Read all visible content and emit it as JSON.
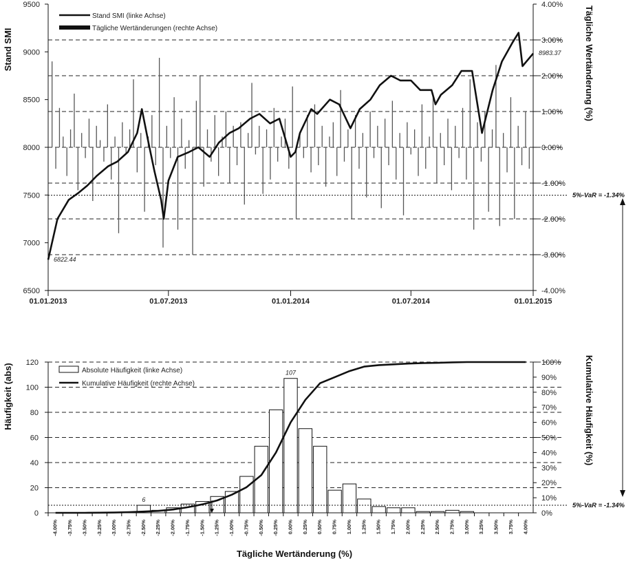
{
  "chart_data": [
    {
      "type": "line",
      "series": [
        {
          "name": "Stand SMI (linke Achse)",
          "axis": "left",
          "x": [
            "01.01.2013",
            "15.01.2013",
            "01.02.2013",
            "15.02.2013",
            "01.03.2013",
            "15.03.2013",
            "01.04.2013",
            "15.04.2013",
            "01.05.2013",
            "15.05.2013",
            "22.05.2013",
            "01.06.2013",
            "10.06.2013",
            "20.06.2013",
            "24.06.2013",
            "01.07.2013",
            "15.07.2013",
            "01.08.2013",
            "15.08.2013",
            "01.09.2013",
            "15.09.2013",
            "01.10.2013",
            "15.10.2013",
            "01.11.2013",
            "15.11.2013",
            "01.12.2013",
            "15.12.2013",
            "01.01.2014",
            "08.01.2014",
            "15.01.2014",
            "01.02.2014",
            "10.02.2014",
            "01.03.2014",
            "15.03.2014",
            "01.04.2014",
            "15.04.2014",
            "01.05.2014",
            "15.05.2014",
            "01.06.2014",
            "15.06.2014",
            "01.07.2014",
            "15.07.2014",
            "01.08.2014",
            "07.08.2014",
            "15.08.2014",
            "01.09.2014",
            "15.09.2014",
            "01.10.2014",
            "16.10.2014",
            "01.11.2014",
            "15.11.2014",
            "01.12.2014",
            "10.12.2014",
            "16.12.2014",
            "01.01.2015"
          ],
          "y": [
            6822,
            7250,
            7450,
            7520,
            7600,
            7700,
            7800,
            7850,
            7950,
            8150,
            8400,
            8050,
            7750,
            7450,
            7250,
            7650,
            7900,
            7950,
            8000,
            7900,
            8050,
            8150,
            8200,
            8300,
            8350,
            8250,
            8300,
            7900,
            7950,
            8150,
            8400,
            8350,
            8500,
            8450,
            8200,
            8400,
            8500,
            8650,
            8750,
            8700,
            8700,
            8600,
            8600,
            8450,
            8550,
            8650,
            8800,
            8800,
            8150,
            8600,
            8900,
            9100,
            9200,
            8850,
            8983
          ]
        }
      ],
      "bars": {
        "name": "Tägliche Wertänderungen (rechte Achse)",
        "axis": "right",
        "values": [
          2.4,
          -0.6,
          1.1,
          0.3,
          -0.8,
          0.5,
          1.5,
          -1.2,
          0.4,
          -0.3,
          0.8,
          -1.5,
          0.6,
          0.2,
          -0.4,
          1.2,
          -0.9,
          0.3,
          -2.4,
          0.7,
          -0.2,
          0.5,
          1.9,
          -0.7,
          0.4,
          -1.8,
          0.3,
          0.9,
          -0.5,
          2.5,
          -2.8,
          0.6,
          -0.3,
          1.4,
          -2.3,
          0.8,
          -0.6,
          0.2,
          -3.0,
          1.3,
          2.0,
          -1.1,
          0.5,
          -0.4,
          0.9,
          -0.8,
          0.3,
          1.0,
          -1.0,
          0.6,
          -0.5,
          0.7,
          -1.6,
          0.4,
          1.8,
          -0.2,
          0.6,
          -1.3,
          0.5,
          -0.9,
          1.1,
          -0.4,
          0.3,
          0.8,
          -0.6,
          1.7,
          -2.0,
          0.4,
          -0.3,
          0.9,
          -0.7,
          1.2,
          -0.5,
          0.6,
          -1.1,
          0.3,
          0.7,
          -0.8,
          1.6,
          -0.4,
          0.5,
          -2.0,
          0.9,
          -0.6,
          0.4,
          -1.4,
          1.0,
          -0.3,
          0.6,
          -1.7,
          0.8,
          -0.5,
          1.3,
          -0.9,
          0.4,
          -1.9,
          0.7,
          -0.2,
          0.5,
          -0.8,
          1.2,
          -0.6,
          0.3,
          1.5,
          -1.0,
          0.4,
          -0.5,
          0.8,
          -1.2,
          0.6,
          -0.3,
          1.1,
          -0.9,
          1.9,
          -2.3,
          0.7,
          -0.4,
          1.0,
          -1.8,
          0.5,
          2.3,
          -2.2,
          0.4,
          -0.7,
          1.4,
          -2.0,
          0.6,
          -0.5,
          1.0,
          -0.6
        ]
      },
      "xlim": [
        "01.01.2013",
        "01.01.2015"
      ],
      "x_ticks": [
        "01.01.2013",
        "01.07.2013",
        "01.01.2014",
        "01.07.2014",
        "01.01.2015"
      ],
      "left_axis": {
        "label": "Stand SMI",
        "ylim": [
          6500,
          9500
        ],
        "ticks": [
          "6500",
          "7000",
          "7500",
          "8000",
          "8500",
          "9000",
          "9500"
        ]
      },
      "right_axis": {
        "label": "Tägliche Wertänderung (%)",
        "ylim": [
          -4,
          4
        ],
        "ticks": [
          "-4.00%",
          "-3.00%",
          "-2.00%",
          "-1.00%",
          "0.00%",
          "1.00%",
          "2.00%",
          "3.00%",
          "4.00%"
        ]
      },
      "legend": [
        "Stand SMI (linke Achse)",
        "Tägliche Wertänderungen (rechte Achse)"
      ],
      "annotations": {
        "start_value": "6822.44",
        "end_value": "8983.37",
        "var_line": -1.34,
        "var_label": "5%-VaR = -1.34%"
      },
      "grid": "dashed horizontal at right-axis ticks"
    },
    {
      "type": "bar",
      "categories": [
        "-4.00%",
        "-3.75%",
        "-3.50%",
        "-3.25%",
        "-3.00%",
        "-2.75%",
        "-2.50%",
        "-2.25%",
        "-2.00%",
        "-1.75%",
        "-1.50%",
        "-1.25%",
        "-1.00%",
        "-0.75%",
        "-0.50%",
        "-0.25%",
        "0.00%",
        "0.25%",
        "0.50%",
        "0.75%",
        "1.00%",
        "1.25%",
        "1.50%",
        "1.75%",
        "2.00%",
        "2.25%",
        "2.50%",
        "2.75%",
        "3.00%",
        "3.25%",
        "3.50%",
        "3.75%",
        "4.00%"
      ],
      "series": [
        {
          "name": "Absolute Häufigkeit (linke Achse)",
          "axis": "left",
          "values": [
            0,
            0,
            0,
            0,
            0,
            0,
            6,
            2,
            4,
            7,
            9,
            13,
            17,
            29,
            53,
            82,
            107,
            67,
            53,
            18,
            23,
            11,
            5,
            4,
            4,
            1,
            1,
            2,
            1,
            0,
            0,
            0,
            0
          ]
        },
        {
          "name": "Kumulative Häufigkeit (rechte Achse)",
          "axis": "right",
          "type": "line",
          "values": [
            0,
            0,
            0,
            0.1,
            0.2,
            0.4,
            0.8,
            1.3,
            2.2,
            3.7,
            5.6,
            8.2,
            12,
            17,
            25,
            40,
            60,
            75,
            86,
            90,
            94,
            97,
            98,
            98.5,
            99,
            99.3,
            99.5,
            99.8,
            100,
            100,
            100,
            100,
            100
          ]
        }
      ],
      "xlabel": "Tägliche Wertänderung (%)",
      "left_axis": {
        "label": "Häufigkeit (abs)",
        "ylim": [
          0,
          120
        ],
        "ticks": [
          "0",
          "20",
          "40",
          "60",
          "80",
          "100",
          "120"
        ]
      },
      "right_axis": {
        "label": "Kumulative Häufigkeit (%)",
        "ylim": [
          0,
          100
        ],
        "ticks": [
          "0%",
          "10%",
          "20%",
          "30%",
          "40%",
          "50%",
          "60%",
          "70%",
          "80%",
          "90%",
          "100%"
        ]
      },
      "legend": [
        "Absolute Häufigkeit (linke Achse)",
        "Kumulative Häufigkeit (rechte Achse)"
      ],
      "annotations": {
        "peak_label": "107",
        "tail_label": "6",
        "var_label": "5%-VaR = -1.34%"
      },
      "grid": "dashed horizontal at left-axis ticks"
    }
  ]
}
